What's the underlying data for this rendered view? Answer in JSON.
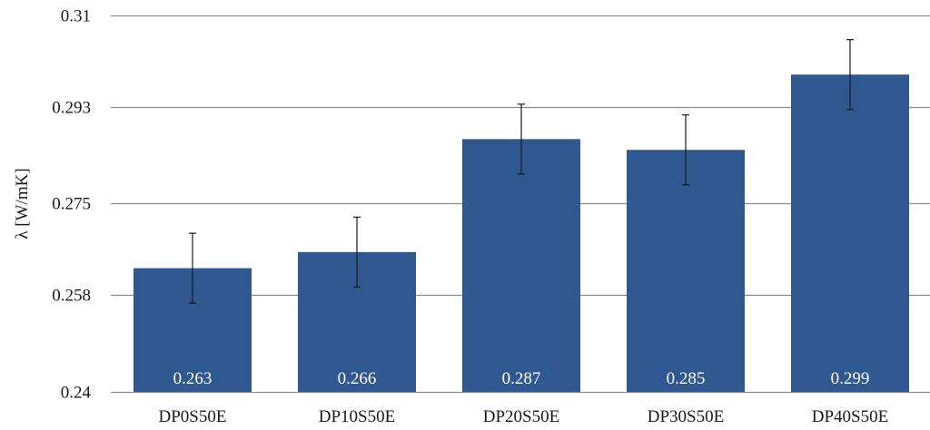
{
  "chart_data": {
    "type": "bar",
    "title": "",
    "xlabel": "",
    "ylabel": "λ [W/mK]",
    "categories": [
      "DP0S50E",
      "DP10S50E",
      "DP20S50E",
      "DP30S50E",
      "DP40S50E"
    ],
    "values": [
      0.263,
      0.266,
      0.287,
      0.285,
      0.299
    ],
    "data_labels": [
      "0.263",
      "0.266",
      "0.287",
      "0.285",
      "0.299"
    ],
    "error_bars": [
      0.0065,
      0.0065,
      0.0065,
      0.0065,
      0.0065
    ],
    "ylim": [
      0.24,
      0.31
    ],
    "yticks": [
      0.24,
      0.258,
      0.275,
      0.293,
      0.31
    ],
    "ytick_labels": [
      "0.24",
      "0.258",
      "0.275",
      "0.293",
      "0.31"
    ],
    "grid": true,
    "legend": "none",
    "colors": {
      "bar": "#2f5790",
      "grid": "#8c8c8c",
      "error_bar": "#1a1a1a",
      "data_label": "#ffffff"
    }
  }
}
